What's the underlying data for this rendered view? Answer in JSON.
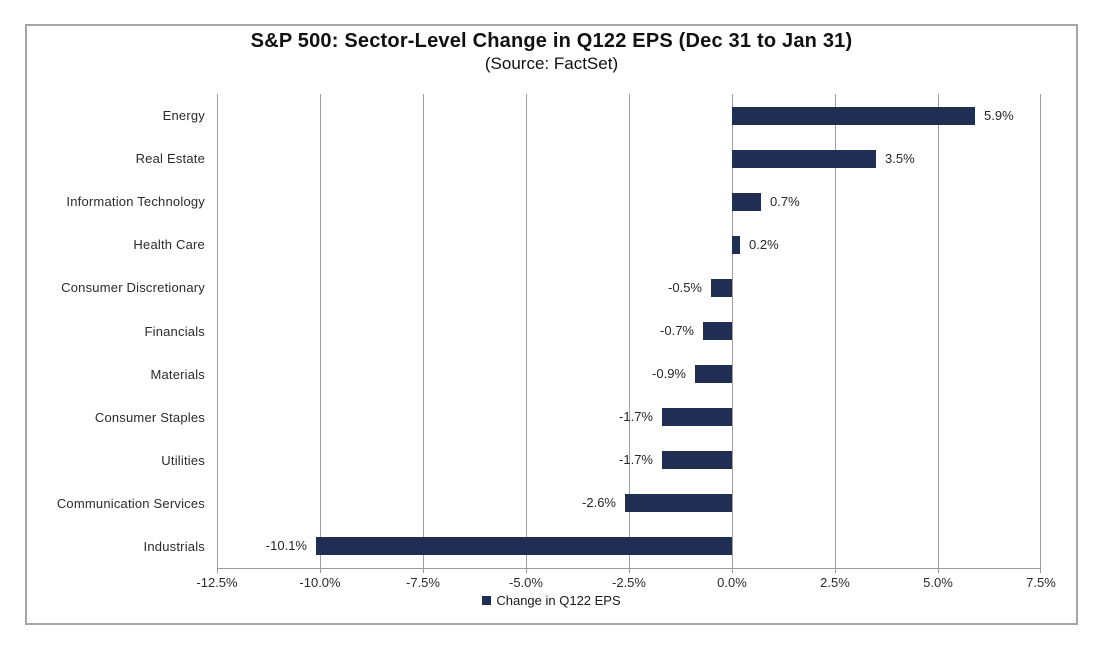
{
  "chart_data": {
    "type": "bar",
    "orientation": "horizontal",
    "title": "S&P 500: Sector-Level Change in Q122 EPS (Dec 31 to Jan 31)",
    "subtitle": "(Source: FactSet)",
    "categories": [
      "Energy",
      "Real Estate",
      "Information Technology",
      "Health Care",
      "Consumer Discretionary",
      "Financials",
      "Materials",
      "Consumer Staples",
      "Utilities",
      "Communication Services",
      "Industrials"
    ],
    "values": [
      5.9,
      3.5,
      0.7,
      0.2,
      -0.5,
      -0.7,
      -0.9,
      -1.7,
      -1.7,
      -2.6,
      -10.1
    ],
    "value_labels": [
      "5.9%",
      "3.5%",
      "0.7%",
      "0.2%",
      "-0.5%",
      "-0.7%",
      "-0.9%",
      "-1.7%",
      "-1.7%",
      "-2.6%",
      "-10.1%"
    ],
    "xlim": [
      -12.5,
      7.5
    ],
    "xtick_step": 2.5,
    "xticks": [
      "-12.5%",
      "-10.0%",
      "-7.5%",
      "-5.0%",
      "-2.5%",
      "0.0%",
      "2.5%",
      "5.0%",
      "7.5%"
    ],
    "grid": true,
    "legend_position": "bottom",
    "legend": [
      {
        "label": "Change in Q122 EPS",
        "color": "#1f2e52"
      }
    ],
    "colors": {
      "bar": "#1f2e52",
      "gridline": "#a0a0a0",
      "axis": "#9b9b9b",
      "frame_border": "#a6a6a6",
      "text": "#2b2b2b"
    }
  }
}
